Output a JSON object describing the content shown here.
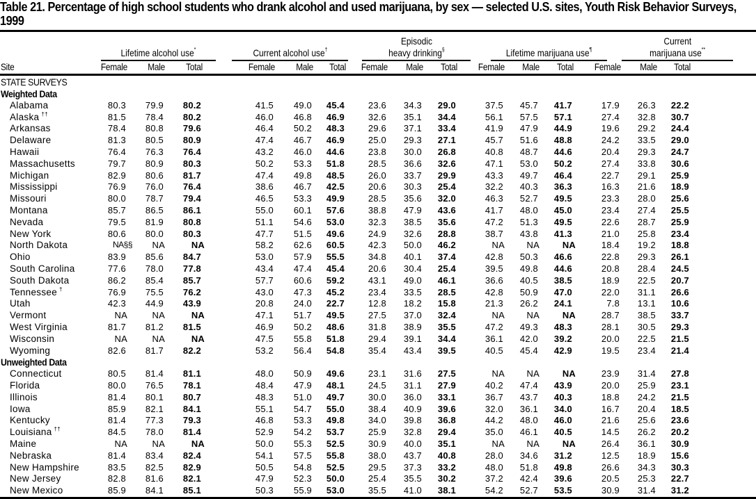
{
  "title": "Table 21. Percentage of high school students who drank alcohol and used marijuana, by sex — selected U.S. sites, Youth Risk Behavior Surveys, 1999",
  "header": {
    "site_label": "Site",
    "groups": [
      {
        "line1": "",
        "line2": "Lifetime alcohol use",
        "mark": "*"
      },
      {
        "line1": "",
        "line2": "Current alcohol use",
        "mark": "†"
      },
      {
        "line1": "Episodic",
        "line2": "heavy drinking",
        "mark": "§"
      },
      {
        "line1": "",
        "line2": "Lifetime marijuana use",
        "mark": "¶"
      },
      {
        "line1": "Current",
        "line2": "marijuana use",
        "mark": "**"
      }
    ],
    "subcols": [
      "Female",
      "Male",
      "Total"
    ]
  },
  "section_label": "STATE SURVEYS",
  "sections": [
    {
      "label": "Weighted Data",
      "rows": [
        {
          "site": "Alabama",
          "mark": "",
          "v": [
            "80.3",
            "79.9",
            "80.2",
            "41.5",
            "49.0",
            "45.4",
            "23.6",
            "34.3",
            "29.0",
            "37.5",
            "45.7",
            "41.7",
            "17.9",
            "26.3",
            "22.2"
          ]
        },
        {
          "site": "Alaska",
          "mark": "††",
          "v": [
            "81.5",
            "78.4",
            "80.2",
            "46.0",
            "46.8",
            "46.9",
            "32.6",
            "35.1",
            "34.4",
            "56.1",
            "57.5",
            "57.1",
            "27.4",
            "32.8",
            "30.7"
          ]
        },
        {
          "site": "Arkansas",
          "mark": "",
          "v": [
            "78.4",
            "80.8",
            "79.6",
            "46.4",
            "50.2",
            "48.3",
            "29.6",
            "37.1",
            "33.4",
            "41.9",
            "47.9",
            "44.9",
            "19.6",
            "29.2",
            "24.4"
          ]
        },
        {
          "site": "Delaware",
          "mark": "",
          "v": [
            "81.3",
            "80.5",
            "80.9",
            "47.4",
            "46.7",
            "46.9",
            "25.0",
            "29.3",
            "27.1",
            "45.7",
            "51.6",
            "48.8",
            "24.2",
            "33.5",
            "29.0"
          ]
        },
        {
          "site": "Hawaii",
          "mark": "",
          "v": [
            "76.4",
            "76.3",
            "76.4",
            "43.2",
            "46.0",
            "44.6",
            "23.8",
            "30.0",
            "26.8",
            "40.8",
            "48.7",
            "44.6",
            "20.4",
            "29.3",
            "24.7"
          ]
        },
        {
          "site": "Massachusetts",
          "mark": "",
          "v": [
            "79.7",
            "80.9",
            "80.3",
            "50.2",
            "53.3",
            "51.8",
            "28.5",
            "36.6",
            "32.6",
            "47.1",
            "53.0",
            "50.2",
            "27.4",
            "33.8",
            "30.6"
          ]
        },
        {
          "site": "Michigan",
          "mark": "",
          "v": [
            "82.9",
            "80.6",
            "81.7",
            "47.4",
            "49.8",
            "48.5",
            "26.0",
            "33.7",
            "29.9",
            "43.3",
            "49.7",
            "46.4",
            "22.7",
            "29.1",
            "25.9"
          ]
        },
        {
          "site": "Mississippi",
          "mark": "",
          "v": [
            "76.9",
            "76.0",
            "76.4",
            "38.6",
            "46.7",
            "42.5",
            "20.6",
            "30.3",
            "25.4",
            "32.2",
            "40.3",
            "36.3",
            "16.3",
            "21.6",
            "18.9"
          ]
        },
        {
          "site": "Missouri",
          "mark": "",
          "v": [
            "80.0",
            "78.7",
            "79.4",
            "46.5",
            "53.3",
            "49.9",
            "28.5",
            "35.6",
            "32.0",
            "46.3",
            "52.7",
            "49.5",
            "23.3",
            "28.0",
            "25.6"
          ]
        },
        {
          "site": "Montana",
          "mark": "",
          "v": [
            "85.7",
            "86.5",
            "86.1",
            "55.0",
            "60.1",
            "57.6",
            "38.8",
            "47.9",
            "43.6",
            "41.7",
            "48.0",
            "45.0",
            "23.4",
            "27.4",
            "25.5"
          ]
        },
        {
          "site": "Nevada",
          "mark": "",
          "v": [
            "79.5",
            "81.9",
            "80.8",
            "51.1",
            "54.6",
            "53.0",
            "32.3",
            "38.5",
            "35.6",
            "47.2",
            "51.3",
            "49.5",
            "22.6",
            "28.7",
            "25.9"
          ]
        },
        {
          "site": "New York",
          "mark": "",
          "v": [
            "80.6",
            "80.0",
            "80.3",
            "47.7",
            "51.5",
            "49.6",
            "24.9",
            "32.6",
            "28.8",
            "38.7",
            "43.8",
            "41.3",
            "21.0",
            "25.8",
            "23.4"
          ]
        },
        {
          "site": "North Dakota",
          "mark": "",
          "v": [
            "NA§§",
            "NA",
            "NA",
            "58.2",
            "62.6",
            "60.5",
            "42.3",
            "50.0",
            "46.2",
            "NA",
            "NA",
            "NA",
            "18.4",
            "19.2",
            "18.8"
          ]
        },
        {
          "site": "Ohio",
          "mark": "",
          "v": [
            "83.9",
            "85.6",
            "84.7",
            "53.0",
            "57.9",
            "55.5",
            "34.8",
            "40.1",
            "37.4",
            "42.8",
            "50.3",
            "46.6",
            "22.8",
            "29.3",
            "26.1"
          ]
        },
        {
          "site": "South Carolina",
          "mark": "",
          "v": [
            "77.6",
            "78.0",
            "77.8",
            "43.4",
            "47.4",
            "45.4",
            "20.6",
            "30.4",
            "25.4",
            "39.5",
            "49.8",
            "44.6",
            "20.8",
            "28.4",
            "24.5"
          ]
        },
        {
          "site": "South Dakota",
          "mark": "",
          "v": [
            "86.2",
            "85.4",
            "85.7",
            "57.7",
            "60.6",
            "59.2",
            "43.1",
            "49.0",
            "46.1",
            "36.6",
            "40.5",
            "38.5",
            "18.9",
            "22.5",
            "20.7"
          ]
        },
        {
          "site": "Tennessee",
          "mark": "†",
          "v": [
            "76.9",
            "75.5",
            "76.2",
            "43.0",
            "47.3",
            "45.2",
            "23.4",
            "33.5",
            "28.5",
            "42.8",
            "50.9",
            "47.0",
            "22.0",
            "31.1",
            "26.6"
          ]
        },
        {
          "site": "Utah",
          "mark": "",
          "v": [
            "42.3",
            "44.9",
            "43.9",
            "20.8",
            "24.0",
            "22.7",
            "12.8",
            "18.2",
            "15.8",
            "21.3",
            "26.2",
            "24.1",
            "7.8",
            "13.1",
            "10.6"
          ]
        },
        {
          "site": "Vermont",
          "mark": "",
          "v": [
            "NA",
            "NA",
            "NA",
            "47.1",
            "51.7",
            "49.5",
            "27.5",
            "37.0",
            "32.4",
            "NA",
            "NA",
            "NA",
            "28.7",
            "38.5",
            "33.7"
          ]
        },
        {
          "site": "West Virginia",
          "mark": "",
          "v": [
            "81.7",
            "81.2",
            "81.5",
            "46.9",
            "50.2",
            "48.6",
            "31.8",
            "38.9",
            "35.5",
            "47.2",
            "49.3",
            "48.3",
            "28.1",
            "30.5",
            "29.3"
          ]
        },
        {
          "site": "Wisconsin",
          "mark": "",
          "v": [
            "NA",
            "NA",
            "NA",
            "47.5",
            "55.8",
            "51.8",
            "29.4",
            "39.1",
            "34.4",
            "36.1",
            "42.0",
            "39.2",
            "20.0",
            "22.5",
            "21.5"
          ]
        },
        {
          "site": "Wyoming",
          "mark": "",
          "v": [
            "82.6",
            "81.7",
            "82.2",
            "53.2",
            "56.4",
            "54.8",
            "35.4",
            "43.4",
            "39.5",
            "40.5",
            "45.4",
            "42.9",
            "19.5",
            "23.4",
            "21.4"
          ]
        }
      ]
    },
    {
      "label": "Unweighted Data",
      "rows": [
        {
          "site": "Connecticut",
          "mark": "",
          "v": [
            "80.5",
            "81.4",
            "81.1",
            "48.0",
            "50.9",
            "49.6",
            "23.1",
            "31.6",
            "27.5",
            "NA",
            "NA",
            "NA",
            "23.9",
            "31.4",
            "27.8"
          ]
        },
        {
          "site": "Florida",
          "mark": "",
          "v": [
            "80.0",
            "76.5",
            "78.1",
            "48.4",
            "47.9",
            "48.1",
            "24.5",
            "31.1",
            "27.9",
            "40.2",
            "47.4",
            "43.9",
            "20.0",
            "25.9",
            "23.1"
          ]
        },
        {
          "site": "Illinois",
          "mark": "",
          "v": [
            "81.4",
            "80.1",
            "80.7",
            "48.3",
            "51.0",
            "49.7",
            "30.0",
            "36.0",
            "33.1",
            "36.7",
            "43.7",
            "40.3",
            "18.8",
            "24.2",
            "21.5"
          ]
        },
        {
          "site": "Iowa",
          "mark": "",
          "v": [
            "85.9",
            "82.1",
            "84.1",
            "55.1",
            "54.7",
            "55.0",
            "38.4",
            "40.9",
            "39.6",
            "32.0",
            "36.1",
            "34.0",
            "16.7",
            "20.4",
            "18.5"
          ]
        },
        {
          "site": "Kentucky",
          "mark": "",
          "v": [
            "81.4",
            "77.3",
            "79.3",
            "46.8",
            "53.3",
            "49.8",
            "34.0",
            "39.8",
            "36.8",
            "44.2",
            "48.0",
            "46.0",
            "21.6",
            "25.6",
            "23.6"
          ]
        },
        {
          "site": "Louisiana",
          "mark": "††",
          "v": [
            "84.5",
            "78.0",
            "81.4",
            "52.9",
            "54.2",
            "53.7",
            "25.9",
            "32.8",
            "29.4",
            "35.0",
            "46.1",
            "40.5",
            "14.5",
            "26.2",
            "20.2"
          ]
        },
        {
          "site": "Maine",
          "mark": "",
          "v": [
            "NA",
            "NA",
            "NA",
            "50.0",
            "55.3",
            "52.5",
            "30.9",
            "40.0",
            "35.1",
            "NA",
            "NA",
            "NA",
            "26.4",
            "36.1",
            "30.9"
          ]
        },
        {
          "site": "Nebraska",
          "mark": "",
          "v": [
            "81.4",
            "83.4",
            "82.4",
            "54.1",
            "57.5",
            "55.8",
            "38.0",
            "43.7",
            "40.8",
            "28.0",
            "34.6",
            "31.2",
            "12.5",
            "18.9",
            "15.6"
          ]
        },
        {
          "site": "New Hampshire",
          "mark": "",
          "v": [
            "83.5",
            "82.5",
            "82.9",
            "50.5",
            "54.8",
            "52.5",
            "29.5",
            "37.3",
            "33.2",
            "48.0",
            "51.8",
            "49.8",
            "26.6",
            "34.3",
            "30.3"
          ]
        },
        {
          "site": "New Jersey",
          "mark": "",
          "v": [
            "82.8",
            "81.6",
            "82.1",
            "47.9",
            "52.3",
            "50.0",
            "25.4",
            "35.5",
            "30.2",
            "37.2",
            "42.4",
            "39.6",
            "20.5",
            "25.3",
            "22.7"
          ]
        },
        {
          "site": "New Mexico",
          "mark": "",
          "v": [
            "85.9",
            "84.1",
            "85.1",
            "50.3",
            "55.9",
            "53.0",
            "35.5",
            "41.0",
            "38.1",
            "54.2",
            "52.7",
            "53.5",
            "30.9",
            "31.4",
            "31.2"
          ]
        }
      ]
    }
  ]
}
